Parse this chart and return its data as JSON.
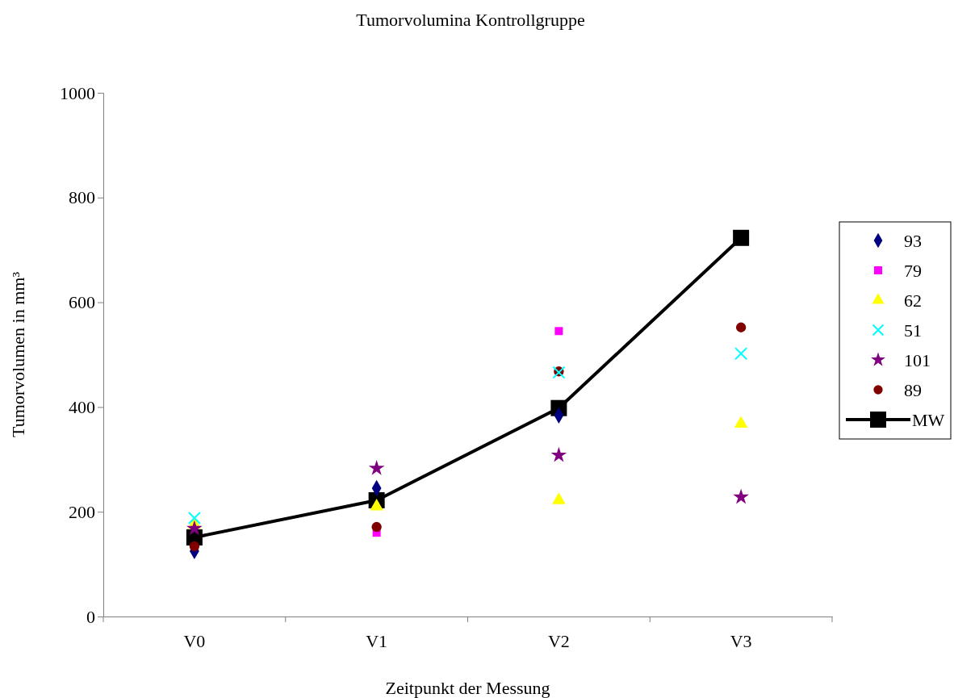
{
  "chart_data": {
    "type": "scatter",
    "title": "Tumorvolumina Kontrollgruppe",
    "xlabel": "Zeitpunkt der Messung",
    "ylabel": "Tumorvolumen in mm³",
    "categories": [
      "V0",
      "V1",
      "V2",
      "V3"
    ],
    "ylim": [
      0,
      1000
    ],
    "yticks": [
      0,
      200,
      400,
      600,
      800,
      1000
    ],
    "legend": "right",
    "grid": false,
    "series": [
      {
        "name": "93",
        "color": "#000080",
        "marker": "diamond",
        "values": [
          125,
          245,
          384,
          null
        ]
      },
      {
        "name": "79",
        "color": "#ff00ff",
        "marker": "square",
        "values": [
          null,
          160,
          545,
          null
        ]
      },
      {
        "name": "62",
        "color": "#ffff00",
        "marker": "triangle",
        "values": [
          175,
          210,
          222,
          368
        ]
      },
      {
        "name": "51",
        "color": "#00ffff",
        "marker": "cross",
        "values": [
          188,
          null,
          466,
          502
        ]
      },
      {
        "name": "101",
        "color": "#800080",
        "marker": "star",
        "values": [
          168,
          283,
          308,
          228
        ]
      },
      {
        "name": "89",
        "color": "#800000",
        "marker": "circle",
        "values": [
          134,
          171,
          468,
          552
        ]
      },
      {
        "name": "MW",
        "color": "#000000",
        "type": "line",
        "marker": "square",
        "line_style": "solid",
        "values": [
          151,
          222,
          398,
          723
        ]
      }
    ]
  }
}
